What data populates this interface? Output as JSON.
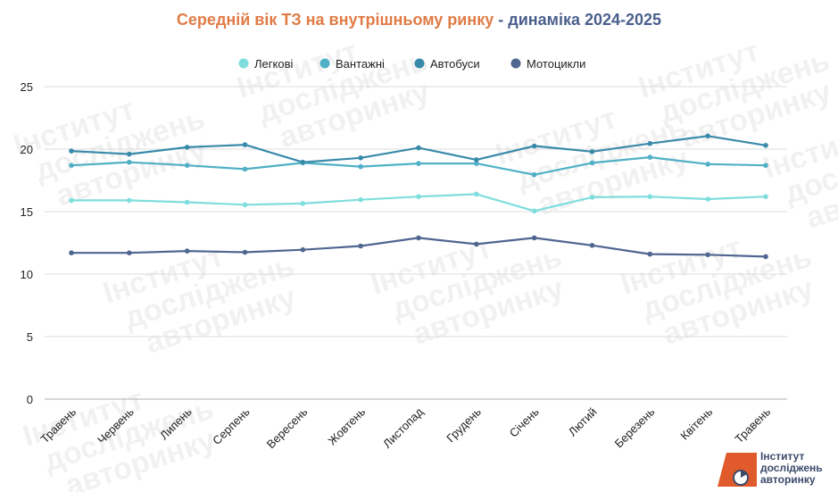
{
  "title": {
    "main": "Середній вік ТЗ на внутрішньому ринку",
    "separator": " - ",
    "suffix": "динаміка 2024-2025"
  },
  "logo": {
    "line1": "Інститут",
    "line2": "досліджень",
    "line3": "авторинку"
  },
  "watermark": [
    "Інститут",
    "досліджень",
    "авторинку"
  ],
  "chart_data": {
    "type": "line",
    "title": "Середній вік ТЗ на внутрішньому ринку - динаміка 2024-2025",
    "xlabel": "",
    "ylabel": "",
    "ylim": [
      0,
      25
    ],
    "yticks": [
      0,
      5,
      10,
      15,
      20,
      25
    ],
    "grid": true,
    "legend_position": "top",
    "categories": [
      "Травень",
      "Червень",
      "Липень",
      "Серпень",
      "Вересень",
      "Жовтень",
      "Листопад",
      "Грудень",
      "Січень",
      "Лютий",
      "Березень",
      "Квітень",
      "Травень"
    ],
    "series": [
      {
        "name": "Легкові",
        "color": "#7fdddd",
        "values": [
          15.9,
          15.9,
          15.75,
          15.55,
          15.65,
          15.95,
          16.2,
          16.4,
          15.05,
          16.15,
          16.2,
          16.0,
          16.2
        ]
      },
      {
        "name": "Вантажні",
        "color": "#4fb0c6",
        "values": [
          18.7,
          18.95,
          18.7,
          18.4,
          18.9,
          18.6,
          18.85,
          18.85,
          17.95,
          18.9,
          19.35,
          18.8,
          18.7
        ]
      },
      {
        "name": "Автобуси",
        "color": "#3a8aaa",
        "values": [
          19.85,
          19.6,
          20.15,
          20.35,
          18.95,
          19.3,
          20.1,
          19.15,
          20.25,
          19.8,
          20.45,
          21.05,
          20.3
        ]
      },
      {
        "name": "Мотоцикли",
        "color": "#4f6690",
        "values": [
          11.7,
          11.7,
          11.85,
          11.75,
          11.95,
          12.25,
          12.9,
          12.4,
          12.9,
          12.3,
          11.6,
          11.55,
          11.4
        ]
      }
    ]
  }
}
